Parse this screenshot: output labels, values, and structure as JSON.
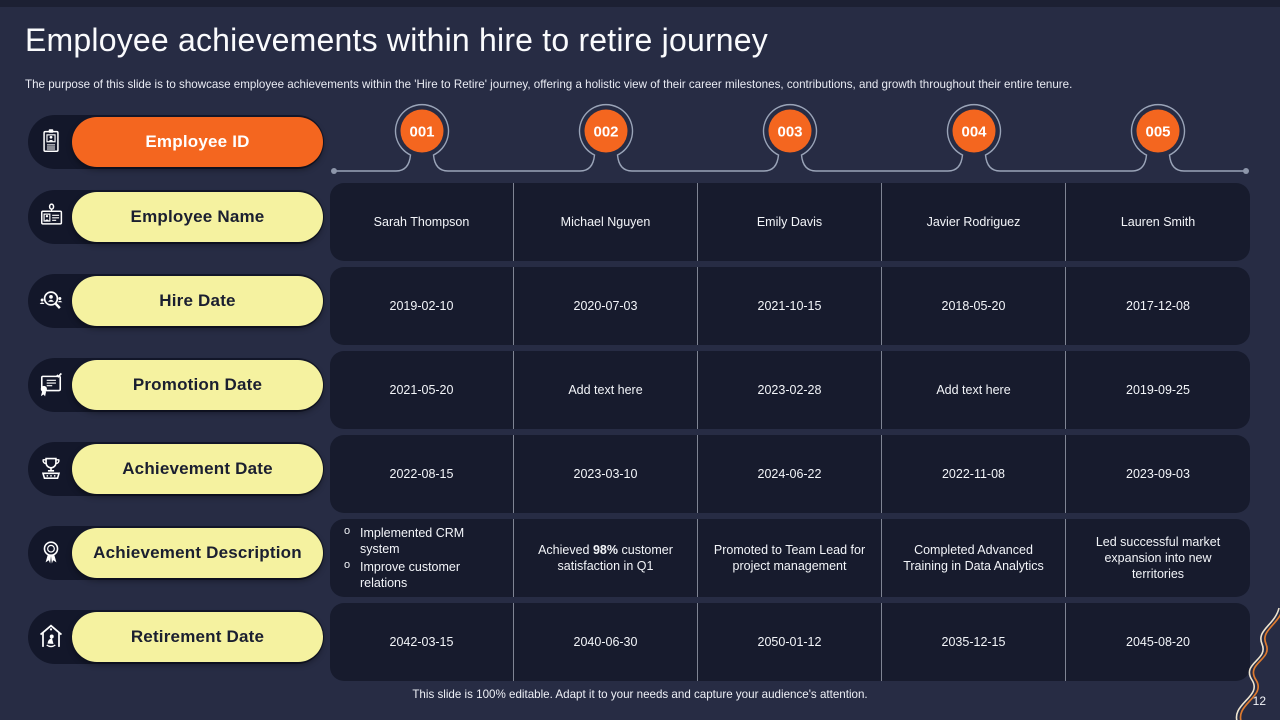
{
  "slide": {
    "title": "Employee achievements within hire to retire journey",
    "subtitle": "The purpose of this slide is to showcase employee achievements within the 'Hire to Retire' journey, offering a holistic view of their career milestones, contributions, and growth throughout their entire tenure.",
    "footer": "This slide is 100% editable. Adapt it to your needs and capture your audience's attention.",
    "page_number": "12"
  },
  "colors": {
    "background": "#272c44",
    "row_background": "#171b2d",
    "sidebar_background": "#13172a",
    "accent_orange": "#f4661f",
    "accent_yellow": "#f5f2a0",
    "timeline_line": "#9aa4b8",
    "divider": "#d5dbe8"
  },
  "sidebar": {
    "items": [
      {
        "label": "Employee ID",
        "icon": "id-badge-icon",
        "style": "orange"
      },
      {
        "label": "Employee Name",
        "icon": "id-card-icon",
        "style": "yellow"
      },
      {
        "label": "Hire Date",
        "icon": "search-people-icon",
        "style": "yellow"
      },
      {
        "label": "Promotion Date",
        "icon": "certificate-icon",
        "style": "yellow"
      },
      {
        "label": "Achievement Date",
        "icon": "trophy-icon",
        "style": "yellow"
      },
      {
        "label": "Achievement Description",
        "icon": "award-ribbon-icon",
        "style": "yellow"
      },
      {
        "label": "Retirement Date",
        "icon": "retirement-home-icon",
        "style": "yellow"
      }
    ]
  },
  "table": {
    "row_fields": [
      "name",
      "hire_date",
      "promotion_date",
      "achievement_date",
      "achievement_description",
      "retirement_date"
    ],
    "employees": [
      {
        "id": "001",
        "name": "Sarah Thompson",
        "hire_date": "2019-02-10",
        "promotion_date": "2021-05-20",
        "achievement_date": "2022-08-15",
        "achievement_description": {
          "items": [
            "Implemented CRM system",
            "Improve customer relations"
          ]
        },
        "retirement_date": "2042-03-15"
      },
      {
        "id": "002",
        "name": "Michael Nguyen",
        "hire_date": "2020-07-03",
        "promotion_date": "Add text here",
        "achievement_date": "2023-03-10",
        "achievement_description": {
          "text": "Achieved 98% customer satisfaction in Q1",
          "bold": "98%"
        },
        "retirement_date": "2040-06-30"
      },
      {
        "id": "003",
        "name": "Emily Davis",
        "hire_date": "2021-10-15",
        "promotion_date": "2023-02-28",
        "achievement_date": "2024-06-22",
        "achievement_description": {
          "text": "Promoted to Team Lead for project management"
        },
        "retirement_date": "2050-01-12"
      },
      {
        "id": "004",
        "name": "Javier Rodriguez",
        "hire_date": "2018-05-20",
        "promotion_date": "Add text here",
        "achievement_date": "2022-11-08",
        "achievement_description": {
          "text": "Completed Advanced Training in Data Analytics"
        },
        "retirement_date": "2035-12-15"
      },
      {
        "id": "005",
        "name": "Lauren Smith",
        "hire_date": "2017-12-08",
        "promotion_date": "2019-09-25",
        "achievement_date": "2023-09-03",
        "achievement_description": {
          "text": "Led successful market expansion into new territories"
        },
        "retirement_date": "2045-08-20"
      }
    ]
  }
}
